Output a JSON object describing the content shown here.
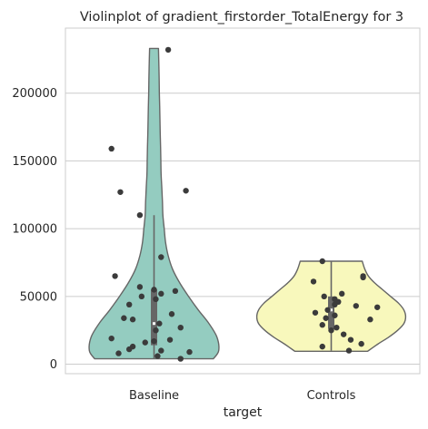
{
  "chart_data": {
    "type": "violin",
    "title": "Violinplot of gradient_firstorder_TotalEnergy for 3",
    "xlabel": "target",
    "ylabel": "",
    "ylim": [
      -7000,
      248000
    ],
    "yticks": [
      0,
      50000,
      100000,
      150000,
      200000
    ],
    "ytick_labels": [
      "0",
      "50000",
      "100000",
      "150000",
      "200000"
    ],
    "grid": true,
    "categories": [
      "Baseline",
      "Controls"
    ],
    "colors": [
      "#94ccc0",
      "#f8f8bc"
    ],
    "series": [
      {
        "category": "Baseline",
        "box": {
          "whisker_low": 4000,
          "q1": 14000,
          "median": 30000,
          "q3": 55000,
          "whisker_high": 110000
        },
        "violin_range": [
          4000,
          233000
        ],
        "profile": [
          [
            4000,
            0.67
          ],
          [
            10000,
            0.73
          ],
          [
            20000,
            0.71
          ],
          [
            30000,
            0.62
          ],
          [
            40000,
            0.5
          ],
          [
            50000,
            0.39
          ],
          [
            60000,
            0.29
          ],
          [
            70000,
            0.21
          ],
          [
            80000,
            0.16
          ],
          [
            90000,
            0.13
          ],
          [
            100000,
            0.115
          ],
          [
            110000,
            0.1
          ],
          [
            120000,
            0.095
          ],
          [
            130000,
            0.088
          ],
          [
            140000,
            0.08
          ],
          [
            150000,
            0.077
          ],
          [
            160000,
            0.074
          ],
          [
            170000,
            0.07
          ],
          [
            180000,
            0.067
          ],
          [
            190000,
            0.064
          ],
          [
            200000,
            0.06
          ],
          [
            210000,
            0.058
          ],
          [
            220000,
            0.055
          ],
          [
            233000,
            0.05
          ]
        ],
        "points": [
          {
            "y": 232000,
            "jitter": 0.08
          },
          {
            "y": 159000,
            "jitter": -0.24
          },
          {
            "y": 128000,
            "jitter": 0.18
          },
          {
            "y": 127000,
            "jitter": -0.19
          },
          {
            "y": 110000,
            "jitter": -0.08
          },
          {
            "y": 79000,
            "jitter": 0.04
          },
          {
            "y": 65000,
            "jitter": -0.22
          },
          {
            "y": 57000,
            "jitter": -0.08
          },
          {
            "y": 55000,
            "jitter": 0.0
          },
          {
            "y": 54000,
            "jitter": 0.12
          },
          {
            "y": 52000,
            "jitter": 0.04
          },
          {
            "y": 50000,
            "jitter": -0.07
          },
          {
            "y": 48000,
            "jitter": 0.01
          },
          {
            "y": 44000,
            "jitter": -0.14
          },
          {
            "y": 37000,
            "jitter": 0.1
          },
          {
            "y": 34000,
            "jitter": -0.17
          },
          {
            "y": 33000,
            "jitter": -0.12
          },
          {
            "y": 30000,
            "jitter": 0.03
          },
          {
            "y": 27000,
            "jitter": 0.15
          },
          {
            "y": 25000,
            "jitter": 0.01
          },
          {
            "y": 19000,
            "jitter": -0.24
          },
          {
            "y": 18000,
            "jitter": 0.09
          },
          {
            "y": 17000,
            "jitter": 0.0
          },
          {
            "y": 16000,
            "jitter": -0.05
          },
          {
            "y": 13000,
            "jitter": -0.12
          },
          {
            "y": 11000,
            "jitter": -0.14
          },
          {
            "y": 10000,
            "jitter": 0.04
          },
          {
            "y": 9000,
            "jitter": 0.2
          },
          {
            "y": 8000,
            "jitter": -0.2
          },
          {
            "y": 6000,
            "jitter": 0.02
          },
          {
            "y": 4000,
            "jitter": 0.15
          }
        ]
      },
      {
        "category": "Controls",
        "box": {
          "whisker_low": 10000,
          "q1": 26000,
          "median": 40000,
          "q3": 50000,
          "whisker_high": 76000
        },
        "violin_range": [
          9500,
          76000
        ],
        "profile": [
          [
            9500,
            0.41
          ],
          [
            15000,
            0.53
          ],
          [
            20000,
            0.65
          ],
          [
            25000,
            0.75
          ],
          [
            30000,
            0.82
          ],
          [
            35000,
            0.84
          ],
          [
            40000,
            0.82
          ],
          [
            45000,
            0.76
          ],
          [
            50000,
            0.67
          ],
          [
            55000,
            0.58
          ],
          [
            60000,
            0.49
          ],
          [
            65000,
            0.42
          ],
          [
            70000,
            0.38
          ],
          [
            76000,
            0.35
          ]
        ],
        "points": [
          {
            "y": 76000,
            "jitter": -0.05
          },
          {
            "y": 65000,
            "jitter": 0.18
          },
          {
            "y": 64000,
            "jitter": 0.18
          },
          {
            "y": 61000,
            "jitter": -0.1
          },
          {
            "y": 52000,
            "jitter": 0.06
          },
          {
            "y": 50000,
            "jitter": -0.04
          },
          {
            "y": 48000,
            "jitter": 0.02
          },
          {
            "y": 46000,
            "jitter": 0.04
          },
          {
            "y": 44000,
            "jitter": 0.02
          },
          {
            "y": 43000,
            "jitter": 0.14
          },
          {
            "y": 42000,
            "jitter": 0.26
          },
          {
            "y": 40000,
            "jitter": -0.02
          },
          {
            "y": 38000,
            "jitter": -0.09
          },
          {
            "y": 36000,
            "jitter": 0.02
          },
          {
            "y": 34000,
            "jitter": -0.03
          },
          {
            "y": 33000,
            "jitter": 0.22
          },
          {
            "y": 29000,
            "jitter": -0.05
          },
          {
            "y": 27000,
            "jitter": 0.03
          },
          {
            "y": 25000,
            "jitter": 0.0
          },
          {
            "y": 22000,
            "jitter": 0.07
          },
          {
            "y": 18000,
            "jitter": 0.11
          },
          {
            "y": 15000,
            "jitter": 0.17
          },
          {
            "y": 13000,
            "jitter": -0.05
          },
          {
            "y": 10000,
            "jitter": 0.1
          }
        ]
      }
    ]
  }
}
